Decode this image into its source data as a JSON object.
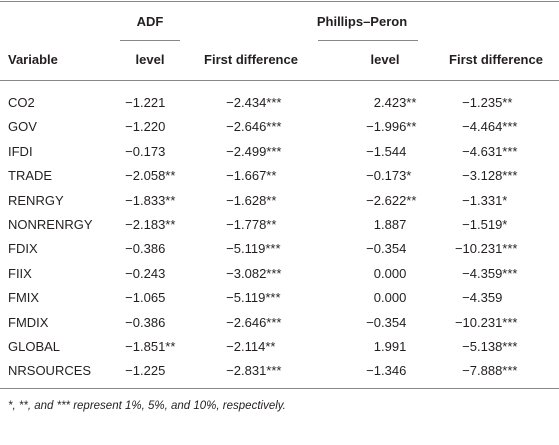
{
  "table": {
    "groups": [
      "ADF",
      "Phillips–Peron"
    ],
    "columns": [
      "Variable",
      "level",
      "First difference",
      "level",
      "First difference"
    ],
    "rows": [
      [
        "CO2",
        "−1.221",
        "−2.434***",
        "2.423**",
        "−1.235**"
      ],
      [
        "GOV",
        "−1.220",
        "−2.646***",
        "−1.996**",
        "−4.464***"
      ],
      [
        "IFDI",
        "−0.173",
        "−2.499***",
        "−1.544",
        "−4.631***"
      ],
      [
        "TRADE",
        "−2.058**",
        "−1.667**",
        "−0.173*",
        "−3.128***"
      ],
      [
        "RENRGY",
        "−1.833**",
        "−1.628**",
        "−2.622**",
        "−1.331*"
      ],
      [
        "NONRENRGY",
        "−2.183**",
        "−1.778**",
        "1.887",
        "−1.519*"
      ],
      [
        "FDIX",
        "−0.386",
        "−5.119***",
        "−0.354",
        "−10.231***"
      ],
      [
        "FIIX",
        "−0.243",
        "−3.082***",
        "0.000",
        "−4.359***"
      ],
      [
        "FMIX",
        "−1.065",
        "−5.119***",
        "0.000",
        "−4.359"
      ],
      [
        "FMDIX",
        "−0.386",
        "−2.646***",
        "−0.354",
        "−10.231***"
      ],
      [
        "GLOBAL",
        "−1.851**",
        "−2.114**",
        "1.991",
        "−5.138***"
      ],
      [
        "NRSOURCES",
        "−1.225",
        "−2.831***",
        "−1.346",
        "−7.888***"
      ]
    ],
    "footnote": "*, **, and *** represent 1%, 5%, and 10%, respectively."
  }
}
